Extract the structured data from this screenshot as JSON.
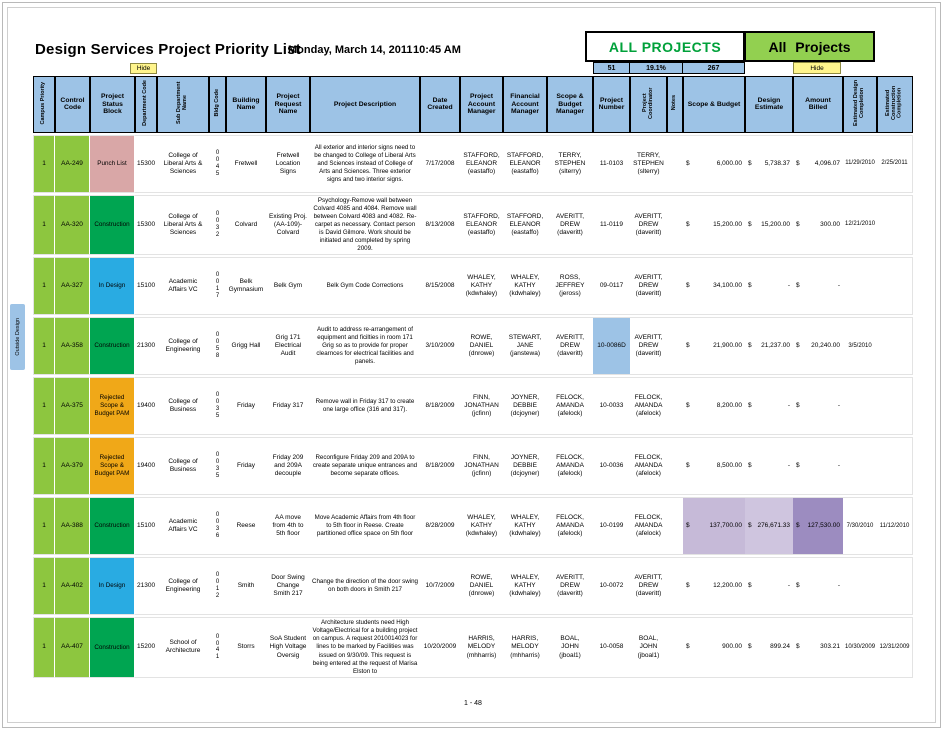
{
  "page": {
    "title": "Design Services Project Priority List",
    "date": "Monday, March 14, 2011",
    "time": "10:45 AM",
    "footer": "1 - 48"
  },
  "banner": {
    "left_label": "ALL PROJECTS",
    "right_label": "All Projects",
    "stat_count": "51",
    "stat_percent": "19.1%",
    "stat_total": "267",
    "hide_label": "Hide"
  },
  "side_label": "Outside Design",
  "colors": {
    "header": "#9DC3E6",
    "row_green": "#8DC63F",
    "highlight_blue": "#9DC3E6",
    "banner_text_green": "#00A13A",
    "banner_bg_green": "#92D050",
    "purple_sb": "#C6BAD8",
    "purple_de": "#CFC5DF",
    "purple_ab": "#9C8CC0",
    "status": {
      "punch": "#D9A7A7",
      "construction": "#00A551",
      "design": "#29ABE2",
      "rejected": "#F0A818"
    }
  },
  "table": {
    "currency": "$",
    "columns": [
      {
        "key": "priority",
        "label": "Campus Priority",
        "vertical": true
      },
      {
        "key": "control",
        "label": "Control Code"
      },
      {
        "key": "status",
        "label": "Project Status Block"
      },
      {
        "key": "dept",
        "label": "Department Code",
        "vertical": true
      },
      {
        "key": "subdept",
        "label": "Sub Department Name",
        "vertical": true
      },
      {
        "key": "bldg",
        "label": "Bldg Code",
        "vertical": true
      },
      {
        "key": "building",
        "label": "Building Name"
      },
      {
        "key": "request",
        "label": "Project Request Name"
      },
      {
        "key": "description",
        "label": "Project Description"
      },
      {
        "key": "date_created",
        "label": "Date Created"
      },
      {
        "key": "pam",
        "label": "Project Account Manager"
      },
      {
        "key": "fam",
        "label": "Financial Account Manager"
      },
      {
        "key": "sbm",
        "label": "Scope & Budget Manager"
      },
      {
        "key": "number",
        "label": "Project Number"
      },
      {
        "key": "coordinator",
        "label": "Project Coordinator",
        "vertical": true
      },
      {
        "key": "notes",
        "label": "Notes",
        "vertical": true
      },
      {
        "key": "scope_budget",
        "label": "Scope & Budget",
        "money": true
      },
      {
        "key": "design_estimate",
        "label": "Design Estimate",
        "money": true
      },
      {
        "key": "amount_billed",
        "label": "Amount Billed",
        "money": true
      },
      {
        "key": "est_design",
        "label": "Estimated Design Completion",
        "vertical": true
      },
      {
        "key": "est_construction",
        "label": "Estimated Construction Completion",
        "vertical": true
      }
    ],
    "rows": [
      {
        "priority": "1",
        "control": "AA-249",
        "status": "Punch List",
        "status_key": "punch",
        "dept": "15300",
        "subdept": "College of Liberal Arts & Sciences",
        "bldg": "0\n0\n4\n5",
        "building": "Fretwell",
        "request": "Fretwell Location Signs",
        "description": "All exterior and interior signs need to be changed to College of Liberal Arts and Sciences instead of College of Arts and Sciences. Three exterior signs and two interior signs.",
        "date_created": "7/17/2008",
        "pam": "STAFFORD,\nELEANOR\n(eastaffo)",
        "fam": "STAFFORD,\nELEANOR\n(eastaffo)",
        "sbm": "TERRY,\nSTEPHEN\n(slterry)",
        "number": "11-0103",
        "coordinator": "TERRY,\nSTEPHEN\n(slterry)",
        "notes": "",
        "scope_budget": "6,000.00",
        "design_estimate": "5,738.37",
        "amount_billed": "4,096.07",
        "est_design": "11/29/2010",
        "est_construction": "2/25/2011"
      },
      {
        "priority": "1",
        "control": "AA-320",
        "status": "Construction",
        "status_key": "construction",
        "dept": "15300",
        "subdept": "College of Liberal Arts & Sciences",
        "bldg": "0\n0\n3\n2",
        "building": "Colvard",
        "request": "Existing Proj. (AA-109)- Colvard",
        "description": "Psychology-Remove wall between Colvard 4085 and 4084.  Remove wall between Colvard 4083 and 4082.  Re-carpet as necessary. Contact person is David Gilmore. Work should be initiated and completed by spring 2009.",
        "date_created": "8/13/2008",
        "pam": "STAFFORD,\nELEANOR\n(eastaffo)",
        "fam": "STAFFORD,\nELEANOR\n(eastaffo)",
        "sbm": "AVERITT,\nDREW\n(daveritt)",
        "number": "11-0119",
        "coordinator": "AVERITT,\nDREW\n(daveritt)",
        "notes": "",
        "scope_budget": "15,200.00",
        "design_estimate": "15,200.00",
        "amount_billed": "300.00",
        "est_design": "12/21/2010",
        "est_construction": ""
      },
      {
        "priority": "1",
        "control": "AA-327",
        "status": "In Design",
        "status_key": "design",
        "dept": "15100",
        "subdept": "Academic Affairs VC",
        "bldg": "0\n0\n1\n7",
        "building": "Belk Gymnasium",
        "request": "Belk Gym",
        "description": "Belk Gym Code Corrections",
        "date_created": "8/15/2008",
        "pam": "WHALEY,\nKATHY\n(kdwhaley)",
        "fam": "WHALEY,\nKATHY\n(kdwhaley)",
        "sbm": "ROSS,\nJEFFREY\n(jeross)",
        "number": "09-0117",
        "coordinator": "AVERITT,\nDREW\n(daveritt)",
        "notes": "",
        "scope_budget": "34,100.00",
        "design_estimate": "-",
        "amount_billed": "-",
        "est_design": "",
        "est_construction": ""
      },
      {
        "priority": "1",
        "control": "AA-358",
        "status": "Construction",
        "status_key": "construction",
        "dept": "21300",
        "subdept": "College of Engineering",
        "bldg": "0\n0\n5\n8",
        "building": "Grigg Hall",
        "request": "Grig 171 Electrical Audit",
        "description": "Audit to address re-arrangement of equipment and ficilties in room 171 Grig so as to provide for proper clearnces for electrical facilities and panels.",
        "date_created": "3/10/2009",
        "pam": "ROWE,\nDANIEL\n(dnrowe)",
        "fam": "STEWART,\nJANE\n(janstewa)",
        "sbm": "AVERITT,\nDREW\n(daveritt)",
        "number": "10-0086D",
        "coordinator": "AVERITT,\nDREW\n(daveritt)",
        "notes": "",
        "scope_budget": "21,900.00",
        "design_estimate": "21,237.00",
        "amount_billed": "20,240.00",
        "est_design": "3/5/2010",
        "est_construction": "",
        "highlight": {
          "number": "highlight_blue"
        }
      },
      {
        "priority": "1",
        "control": "AA-375",
        "status": "Rejected Scope & Budget PAM",
        "status_key": "rejected",
        "dept": "19400",
        "subdept": "College of Business",
        "bldg": "0\n0\n3\n5",
        "building": "Friday",
        "request": "Friday 317",
        "description": "Remove wall in Friday 317 to create one large office (316 and 317).",
        "date_created": "8/18/2009",
        "pam": "FINN,\nJONATHAN\n(jcfinn)",
        "fam": "JOYNER,\nDEBBIE\n(dcjoyner)",
        "sbm": "FELOCK,\nAMANDA\n(afelock)",
        "number": "10-0033",
        "coordinator": "FELOCK,\nAMANDA\n(afelock)",
        "notes": "",
        "scope_budget": "8,200.00",
        "design_estimate": "-",
        "amount_billed": "-",
        "est_design": "",
        "est_construction": ""
      },
      {
        "priority": "1",
        "control": "AA-379",
        "status": "Rejected Scope & Budget PAM",
        "status_key": "rejected",
        "dept": "19400",
        "subdept": "College of Business",
        "bldg": "0\n0\n3\n5",
        "building": "Friday",
        "request": "Friday 209 and 209A decouple",
        "description": "Reconfigure Friday 209 and 209A to create separate unique entrances and become separate offices.",
        "date_created": "8/18/2009",
        "pam": "FINN,\nJONATHAN\n(jcfinn)",
        "fam": "JOYNER,\nDEBBIE\n(dcjoyner)",
        "sbm": "FELOCK,\nAMANDA\n(afelock)",
        "number": "10-0036",
        "coordinator": "FELOCK,\nAMANDA\n(afelock)",
        "notes": "",
        "scope_budget": "8,500.00",
        "design_estimate": "-",
        "amount_billed": "-",
        "est_design": "",
        "est_construction": ""
      },
      {
        "priority": "1",
        "control": "AA-388",
        "status": "Construction",
        "status_key": "construction",
        "dept": "15100",
        "subdept": "Academic Affairs VC",
        "bldg": "0\n0\n3\n6",
        "building": "Reese",
        "request": "AA move from 4th to 5th floor",
        "description": "Move Academic Affairs from 4th floor to 5th floor in Reese.  Create partitioned office space on 5th floor",
        "date_created": "8/28/2009",
        "pam": "WHALEY,\nKATHY\n(kdwhaley)",
        "fam": "WHALEY,\nKATHY\n(kdwhaley)",
        "sbm": "FELOCK,\nAMANDA\n(afelock)",
        "number": "10-0199",
        "coordinator": "FELOCK,\nAMANDA\n(afelock)",
        "notes": "",
        "scope_budget": "137,700.00",
        "design_estimate": "276,671.33",
        "amount_billed": "127,530.00",
        "est_design": "7/30/2010",
        "est_construction": "11/12/2010",
        "highlight": {
          "scope_budget": "purple_sb",
          "design_estimate": "purple_de",
          "amount_billed": "purple_ab"
        }
      },
      {
        "priority": "1",
        "control": "AA-402",
        "status": "In Design",
        "status_key": "design",
        "dept": "21300",
        "subdept": "College of Engineering",
        "bldg": "0\n0\n1\n2",
        "building": "Smith",
        "request": "Door Swing Change Smith 217",
        "description": "Change the direction of the door swing on both doors in Smith 217",
        "date_created": "10/7/2009",
        "pam": "ROWE,\nDANIEL\n(dnrowe)",
        "fam": "WHALEY,\nKATHY\n(kdwhaley)",
        "sbm": "AVERITT,\nDREW\n(daveritt)",
        "number": "10-0072",
        "coordinator": "AVERITT,\nDREW\n(daveritt)",
        "notes": "",
        "scope_budget": "12,200.00",
        "design_estimate": "-",
        "amount_billed": "-",
        "est_design": "",
        "est_construction": ""
      },
      {
        "priority": "1",
        "control": "AA-407",
        "status": "Construction",
        "status_key": "construction",
        "dept": "15200",
        "subdept": "School of Architecture",
        "bldg": "0\n0\n4\n1",
        "building": "Storrs",
        "request": "SoA Student High Voltage Oversig",
        "description": "Architecture students need High Voltage/Electrical for a building project on  campus.  A request 2010014023 for lines to be marked by Facilities was  issued on 9/30/09.  This request is being entered at the request of Marisa Elston to",
        "date_created": "10/20/2009",
        "pam": "HARRIS,\nMELODY\n(mhharris)",
        "fam": "HARRIS,\nMELODY\n(mhharris)",
        "sbm": "BOAL,\nJOHN\n(jboal1)",
        "number": "10-0058",
        "coordinator": "BOAL,\nJOHN\n(jboal1)",
        "notes": "",
        "scope_budget": "900.00",
        "design_estimate": "899.24",
        "amount_billed": "303.21",
        "est_design": "10/30/2009",
        "est_construction": "12/31/2009"
      }
    ]
  }
}
